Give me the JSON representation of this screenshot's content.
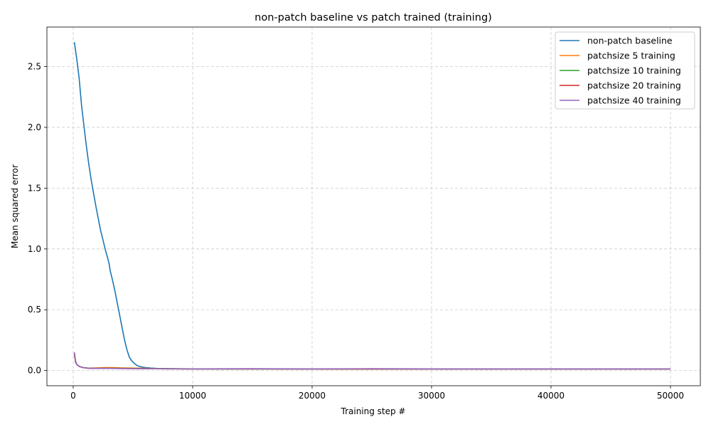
{
  "chart_data": {
    "type": "line",
    "title": "non-patch baseline vs patch trained (training)",
    "xlabel": "Training step #",
    "ylabel": "Mean squared error",
    "xlim": [
      -2200,
      52500
    ],
    "ylim": [
      -0.125,
      2.825
    ],
    "xticks": [
      0,
      10000,
      20000,
      30000,
      40000,
      50000
    ],
    "xtick_labels": [
      "0",
      "10000",
      "20000",
      "30000",
      "40000",
      "50000"
    ],
    "yticks": [
      0.0,
      0.5,
      1.0,
      1.5,
      2.0,
      2.5
    ],
    "ytick_labels": [
      "0.0",
      "0.5",
      "1.0",
      "1.5",
      "2.0",
      "2.5"
    ],
    "grid": true,
    "legend_position": "top-right",
    "series": [
      {
        "name": "non-patch baseline",
        "color": "#1f77b4",
        "x": [
          100,
          300,
          500,
          700,
          900,
          1100,
          1300,
          1500,
          1700,
          1900,
          2100,
          2300,
          2500,
          2700,
          2900,
          3000,
          3100,
          3300,
          3500,
          3700,
          3900,
          4100,
          4300,
          4500,
          4700,
          4900,
          5100,
          5300,
          5500,
          5700,
          6000,
          6500,
          7000,
          8000,
          9000,
          10000,
          15000,
          20000,
          25000,
          30000,
          35000,
          40000,
          45000,
          50000
        ],
        "values": [
          2.7,
          2.56,
          2.4,
          2.18,
          2.01,
          1.85,
          1.7,
          1.57,
          1.46,
          1.35,
          1.25,
          1.15,
          1.07,
          0.99,
          0.92,
          0.88,
          0.82,
          0.74,
          0.65,
          0.55,
          0.45,
          0.35,
          0.25,
          0.17,
          0.11,
          0.08,
          0.06,
          0.045,
          0.035,
          0.03,
          0.025,
          0.02,
          0.017,
          0.015,
          0.014,
          0.013,
          0.013,
          0.012,
          0.012,
          0.012,
          0.012,
          0.012,
          0.012,
          0.012
        ]
      },
      {
        "name": "patchsize 5 training",
        "color": "#ff7f0e",
        "x": [
          100,
          200,
          300,
          500,
          800,
          1200,
          1600,
          2000,
          2500,
          3000,
          3500,
          4000,
          5000,
          6000,
          7000,
          8000,
          10000,
          15000,
          20000,
          30000,
          40000,
          50000
        ],
        "values": [
          0.13,
          0.07,
          0.05,
          0.035,
          0.025,
          0.02,
          0.02,
          0.022,
          0.024,
          0.025,
          0.024,
          0.022,
          0.02,
          0.018,
          0.016,
          0.015,
          0.014,
          0.014,
          0.013,
          0.013,
          0.013,
          0.013
        ]
      },
      {
        "name": "patchsize 10 training",
        "color": "#2ca02c",
        "x": [
          100,
          200,
          300,
          500,
          800,
          1200,
          1600,
          2000,
          3000,
          4000,
          5000,
          6000,
          8000,
          10000,
          20000,
          30000,
          40000,
          50000
        ],
        "values": [
          0.14,
          0.07,
          0.05,
          0.035,
          0.025,
          0.02,
          0.018,
          0.018,
          0.019,
          0.018,
          0.017,
          0.016,
          0.015,
          0.014,
          0.013,
          0.013,
          0.013,
          0.013
        ]
      },
      {
        "name": "patchsize 20 training",
        "color": "#d62728",
        "x": [
          100,
          200,
          300,
          500,
          800,
          1200,
          1600,
          2000,
          3000,
          4000,
          5000,
          6000,
          8000,
          10000,
          20000,
          30000,
          40000,
          50000
        ],
        "values": [
          0.145,
          0.07,
          0.05,
          0.033,
          0.024,
          0.019,
          0.017,
          0.017,
          0.018,
          0.017,
          0.016,
          0.015,
          0.014,
          0.014,
          0.013,
          0.013,
          0.013,
          0.013
        ]
      },
      {
        "name": "patchsize 40 training",
        "color": "#9467bd",
        "x": [
          100,
          200,
          300,
          500,
          800,
          1200,
          1600,
          2000,
          3000,
          4000,
          5000,
          6000,
          8000,
          10000,
          15000,
          20000,
          25000,
          30000,
          40000,
          50000
        ],
        "values": [
          0.15,
          0.08,
          0.05,
          0.034,
          0.025,
          0.02,
          0.018,
          0.017,
          0.017,
          0.016,
          0.016,
          0.015,
          0.014,
          0.014,
          0.015,
          0.014,
          0.015,
          0.014,
          0.014,
          0.014
        ]
      }
    ]
  }
}
